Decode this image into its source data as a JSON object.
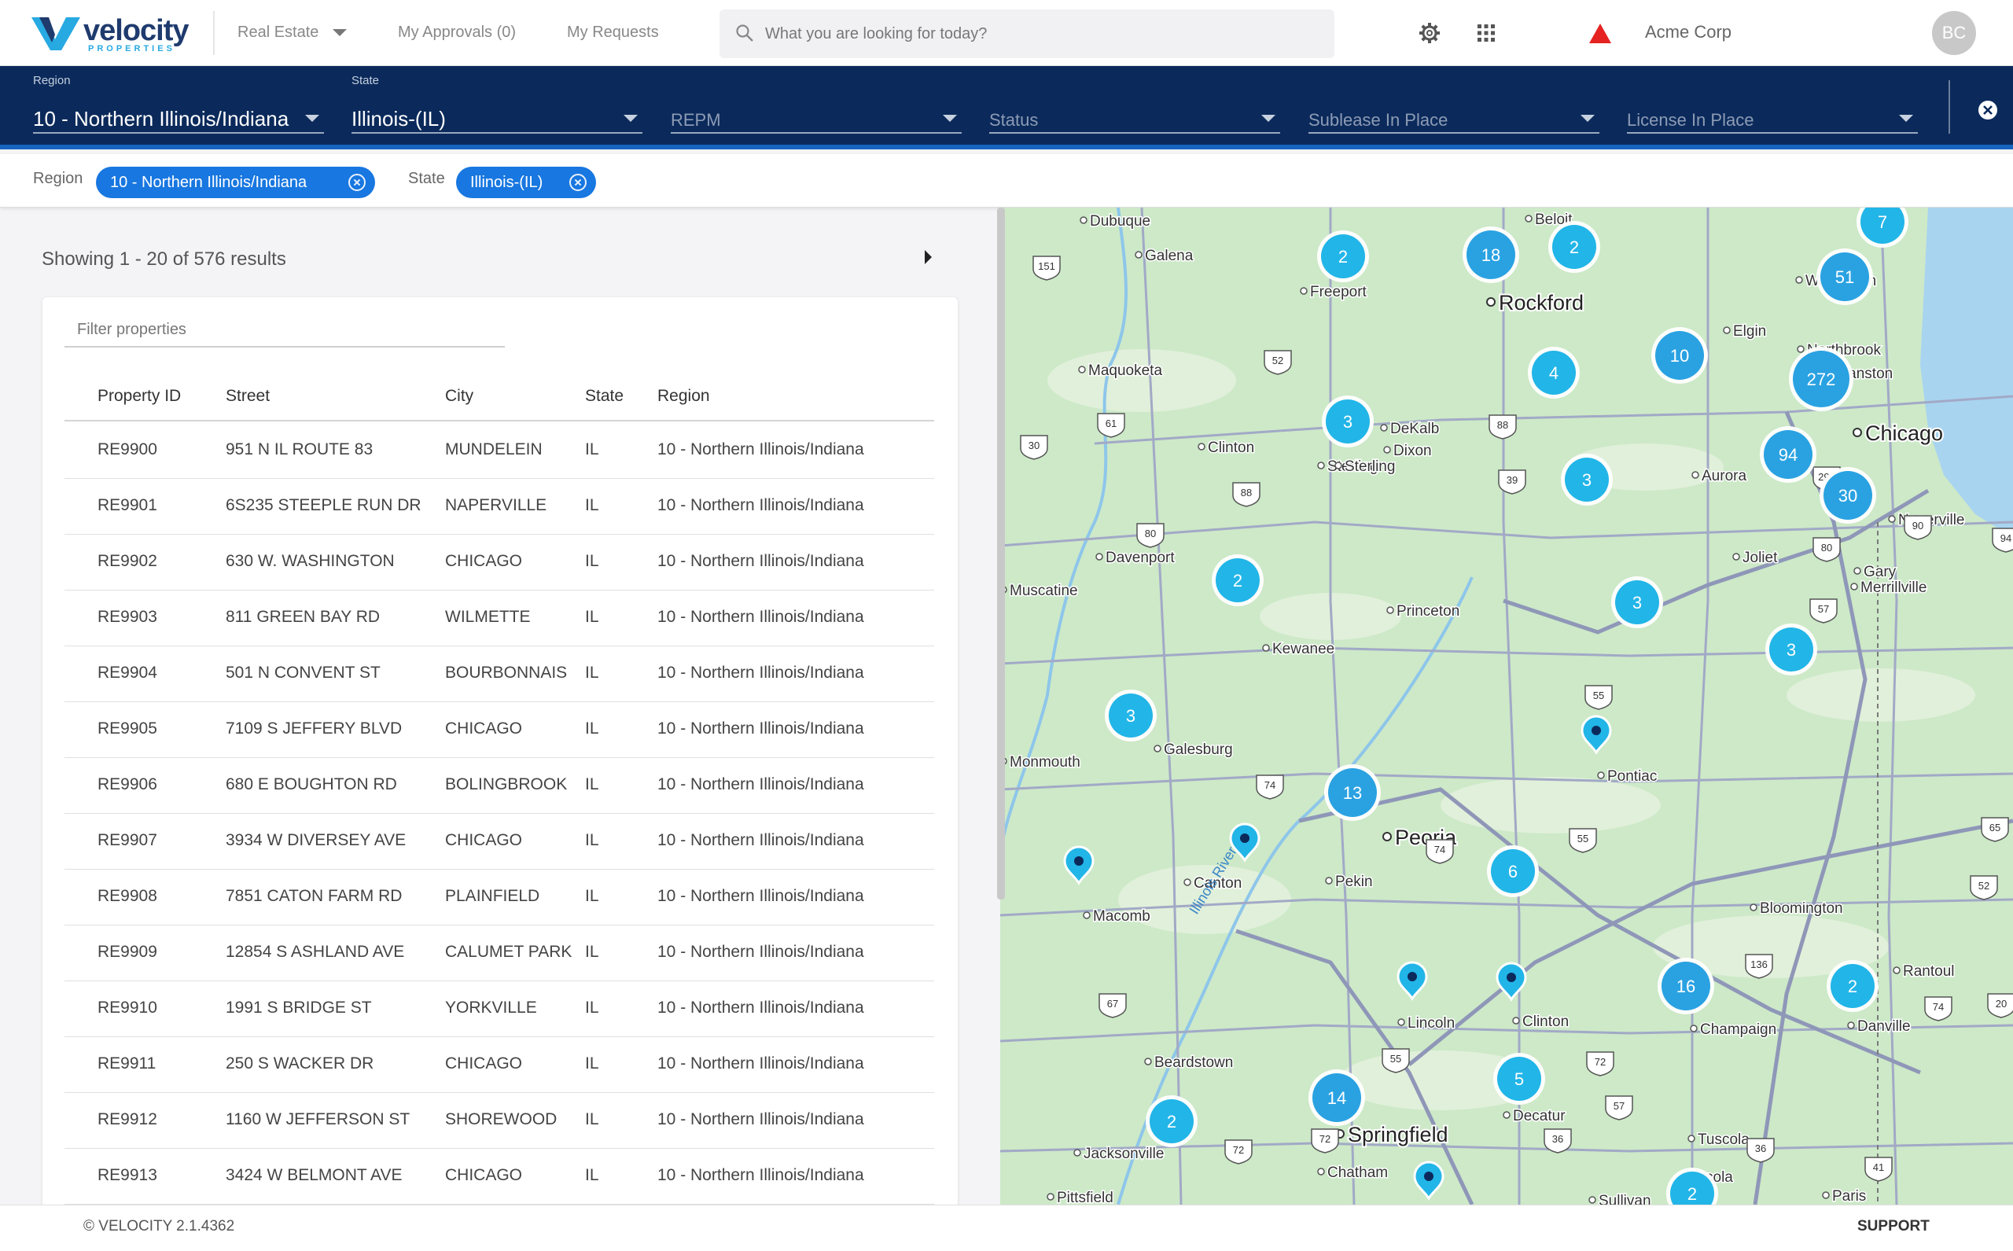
{
  "brand": {
    "name": "velocity",
    "tagline": "PROPERTIES"
  },
  "nav": {
    "module": "Real Estate",
    "approvals": "My Approvals (0)",
    "requests": "My Requests",
    "search_placeholder": "What you are looking for today?",
    "company": "Acme Corp",
    "avatar_initials": "BC"
  },
  "filters": {
    "region": {
      "label": "Region",
      "value": "10 - Northern Illinois/Indiana"
    },
    "state": {
      "label": "State",
      "value": "Illinois-(IL)"
    },
    "repm": {
      "placeholder": "REPM"
    },
    "status": {
      "placeholder": "Status"
    },
    "sublease": {
      "placeholder": "Sublease In Place"
    },
    "license": {
      "placeholder": "License In Place"
    }
  },
  "chips": {
    "region_label": "Region",
    "region_value": "10 - Northern Illinois/Indiana",
    "state_label": "State",
    "state_value": "Illinois-(IL)"
  },
  "results": {
    "summary": "Showing 1 - 20 of 576 results",
    "filter_placeholder": "Filter properties"
  },
  "table": {
    "headers": {
      "id": "Property ID",
      "street": "Street",
      "city": "City",
      "state": "State",
      "region": "Region"
    },
    "rows": [
      {
        "id": "RE9900",
        "street": "951 N IL ROUTE 83",
        "city": "MUNDELEIN",
        "state": "IL",
        "region": "10 - Northern Illinois/Indiana"
      },
      {
        "id": "RE9901",
        "street": "6S235 STEEPLE RUN DR",
        "city": "NAPERVILLE",
        "state": "IL",
        "region": "10 - Northern Illinois/Indiana"
      },
      {
        "id": "RE9902",
        "street": "630 W. WASHINGTON",
        "city": "CHICAGO",
        "state": "IL",
        "region": "10 - Northern Illinois/Indiana"
      },
      {
        "id": "RE9903",
        "street": "811 GREEN BAY RD",
        "city": "WILMETTE",
        "state": "IL",
        "region": "10 - Northern Illinois/Indiana"
      },
      {
        "id": "RE9904",
        "street": "501 N CONVENT ST",
        "city": "BOURBONNAIS",
        "state": "IL",
        "region": "10 - Northern Illinois/Indiana"
      },
      {
        "id": "RE9905",
        "street": "7109 S JEFFERY BLVD",
        "city": "CHICAGO",
        "state": "IL",
        "region": "10 - Northern Illinois/Indiana"
      },
      {
        "id": "RE9906",
        "street": "680 E BOUGHTON RD",
        "city": "BOLINGBROOK",
        "state": "IL",
        "region": "10 - Northern Illinois/Indiana"
      },
      {
        "id": "RE9907",
        "street": "3934 W DIVERSEY AVE",
        "city": "CHICAGO",
        "state": "IL",
        "region": "10 - Northern Illinois/Indiana"
      },
      {
        "id": "RE9908",
        "street": "7851 CATON FARM RD",
        "city": "PLAINFIELD",
        "state": "IL",
        "region": "10 - Northern Illinois/Indiana"
      },
      {
        "id": "RE9909",
        "street": "12854 S ASHLAND AVE",
        "city": "CALUMET PARK",
        "state": "IL",
        "region": "10 - Northern Illinois/Indiana"
      },
      {
        "id": "RE9910",
        "street": "1991 S BRIDGE ST",
        "city": "YORKVILLE",
        "state": "IL",
        "region": "10 - Northern Illinois/Indiana"
      },
      {
        "id": "RE9911",
        "street": "250 S WACKER DR",
        "city": "CHICAGO",
        "state": "IL",
        "region": "10 - Northern Illinois/Indiana"
      },
      {
        "id": "RE9912",
        "street": "1160 W JEFFERSON ST",
        "city": "SHOREWOOD",
        "state": "IL",
        "region": "10 - Northern Illinois/Indiana"
      },
      {
        "id": "RE9913",
        "street": "3424 W BELMONT AVE",
        "city": "CHICAGO",
        "state": "IL",
        "region": "10 - Northern Illinois/Indiana"
      }
    ]
  },
  "map": {
    "major_cities": [
      "Rockford",
      "Chicago",
      "Peoria",
      "Springfield"
    ],
    "cities": [
      "Dubuque",
      "Beloit",
      "Galena",
      "Freeport",
      "Waukegan",
      "Northbrook",
      "Evanston",
      "Maquoketa",
      "DeKalb",
      "Clinton",
      "Dixon",
      "Sterling",
      "Naperville",
      "Davenport",
      "Joliet",
      "Gary",
      "Merrillville",
      "Muscatine",
      "Princeton",
      "Kewanee",
      "Galesburg",
      "Monmouth",
      "Pontiac",
      "Canton",
      "Pekin",
      "Macomb",
      "Bloomington",
      "Rantoul",
      "Lincoln",
      "Clinton",
      "Champaign",
      "Danville",
      "Beardstown",
      "Decatur",
      "Tuscola",
      "Jacksonville",
      "Chatham",
      "Arcola",
      "Pittsfield",
      "Sullivan",
      "Paris",
      "Elgin",
      "Aurora",
      "Sterling"
    ],
    "river_label": "Illinois River",
    "clusters": [
      "7",
      "2",
      "18",
      "2",
      "51",
      "10",
      "272",
      "4",
      "3",
      "94",
      "3",
      "30",
      "2",
      "3",
      "3",
      "3",
      "13",
      "6",
      "16",
      "2",
      "5",
      "14",
      "2",
      "2"
    ],
    "shields": [
      "151",
      "52",
      "61",
      "30",
      "88",
      "39",
      "88",
      "80",
      "290",
      "90",
      "80",
      "94",
      "57",
      "55",
      "74",
      "55",
      "74",
      "65",
      "52",
      "136",
      "67",
      "55",
      "72",
      "57",
      "72",
      "72",
      "36",
      "36",
      "41",
      "74",
      "20"
    ]
  },
  "footer": {
    "copyright": "© VELOCITY 2.1.4362",
    "support": "SUPPORT"
  },
  "colors": {
    "navy": "#0b2a5b",
    "chip_blue": "#1877e0",
    "cluster_blue": "#22b5e8",
    "map_green": "#cde9c8",
    "lake": "#a8d4f0",
    "acme_red": "#e52320"
  }
}
